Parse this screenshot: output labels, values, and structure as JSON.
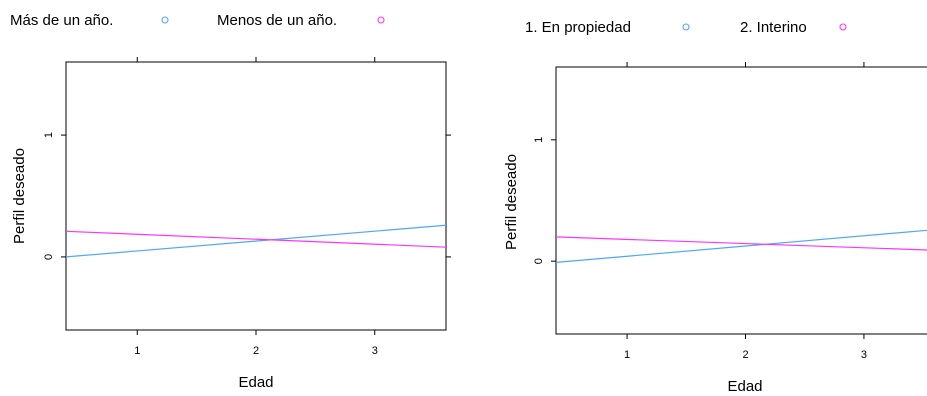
{
  "chart_data": [
    {
      "type": "line",
      "xlabel": "Edad",
      "ylabel": "Perfil deseado",
      "xlim": [
        0.4,
        3.6
      ],
      "ylim": [
        -0.6,
        1.6
      ],
      "xticks": [
        1,
        2,
        3
      ],
      "yticks": [
        0,
        1
      ],
      "grid": false,
      "legend": "top",
      "series": [
        {
          "name": "Más de un año.",
          "color": "#4da6ff",
          "x": [
            0.4,
            3.6
          ],
          "y": [
            0.0,
            0.26
          ]
        },
        {
          "name": "Menos de un año.",
          "color": "#ff33ff",
          "x": [
            0.4,
            3.6
          ],
          "y": [
            0.21,
            0.08
          ]
        }
      ]
    },
    {
      "type": "line",
      "xlabel": "Edad",
      "ylabel": "Perfil deseado",
      "xlim": [
        0.4,
        3.6
      ],
      "ylim": [
        -0.6,
        1.6
      ],
      "xticks": [
        1,
        2,
        3
      ],
      "yticks": [
        0,
        1
      ],
      "grid": false,
      "legend": "top",
      "series": [
        {
          "name": "1. En propiedad",
          "color": "#4da6ff",
          "x": [
            0.4,
            3.6
          ],
          "y": [
            -0.01,
            0.26
          ]
        },
        {
          "name": "2. Interino",
          "color": "#ff33ff",
          "x": [
            0.4,
            3.6
          ],
          "y": [
            0.2,
            0.09
          ]
        }
      ]
    }
  ]
}
